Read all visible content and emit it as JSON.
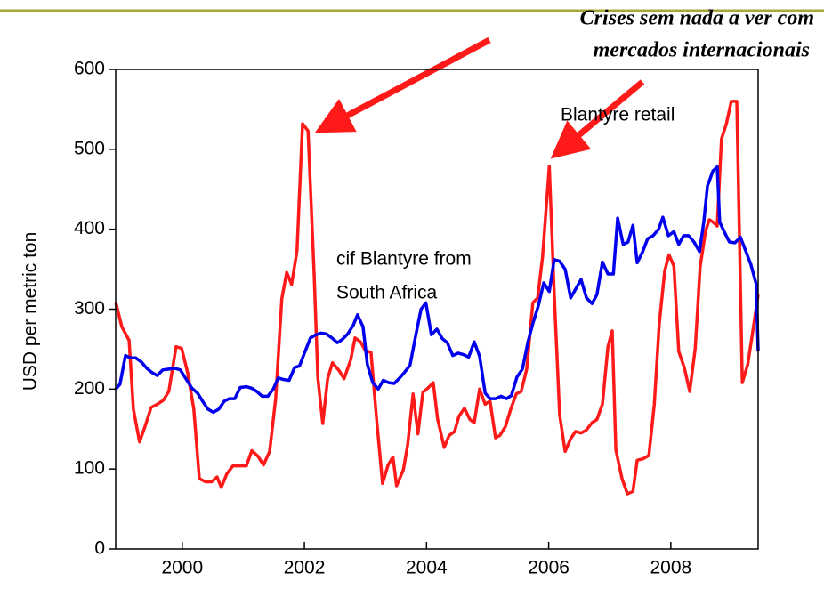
{
  "chart_data": {
    "type": "line",
    "y_label": "USD per metric ton",
    "annotation": [
      "Crises sem nada a ver com",
      "mercados internacionais"
    ],
    "ylim": [
      0,
      600
    ],
    "yticks": [
      0,
      100,
      200,
      300,
      400,
      500,
      600
    ],
    "xlim": [
      1998.91,
      2009.43
    ],
    "xticks": [
      2000,
      2002,
      2004,
      2006,
      2008
    ],
    "series": [
      {
        "name": [
          "Blantyre retail"
        ],
        "color": "#ff1a1a",
        "x": [
          1998.91,
          1999.01,
          1999.13,
          1999.2,
          1999.3,
          1999.39,
          1999.49,
          1999.59,
          1999.69,
          1999.78,
          1999.9,
          1999.99,
          2000.09,
          2000.19,
          2000.28,
          2000.38,
          2000.48,
          2000.57,
          2000.64,
          2000.73,
          2000.83,
          2000.95,
          2001.05,
          2001.14,
          2001.24,
          2001.33,
          2001.43,
          2001.53,
          2001.63,
          2001.71,
          2001.79,
          2001.88,
          2001.97,
          2002.06,
          2002.16,
          2002.22,
          2002.3,
          2002.38,
          2002.46,
          2002.57,
          2002.65,
          2002.76,
          2002.83,
          2002.92,
          2003.0,
          2003.09,
          2003.18,
          2003.28,
          2003.37,
          2003.45,
          2003.51,
          2003.62,
          2003.69,
          2003.78,
          2003.86,
          2003.94,
          2004.02,
          2004.11,
          2004.18,
          2004.29,
          2004.37,
          2004.46,
          2004.53,
          2004.62,
          2004.71,
          2004.78,
          2004.87,
          2004.96,
          2005.04,
          2005.13,
          2005.2,
          2005.29,
          2005.38,
          2005.47,
          2005.55,
          2005.64,
          2005.74,
          2005.82,
          2005.9,
          2006.01,
          2006.09,
          2006.18,
          2006.27,
          2006.36,
          2006.44,
          2006.53,
          2006.62,
          2006.71,
          2006.79,
          2006.88,
          2006.97,
          2007.04,
          2007.1,
          2007.2,
          2007.29,
          2007.38,
          2007.45,
          2007.55,
          2007.64,
          2007.73,
          2007.81,
          2007.9,
          2007.97,
          2008.05,
          2008.13,
          2008.22,
          2008.31,
          2008.4,
          2008.48,
          2008.57,
          2008.63,
          2008.69,
          2008.76,
          2008.83,
          2008.91,
          2008.99,
          2009.08,
          2009.17,
          2009.26,
          2009.34,
          2009.43
        ],
        "values": [
          309,
          278,
          261,
          175,
          134,
          153,
          177,
          181,
          186,
          197,
          253,
          251,
          220,
          175,
          88,
          84,
          84,
          90,
          77,
          94,
          104,
          104,
          104,
          123,
          116,
          105,
          122,
          188,
          313,
          346,
          331,
          373,
          532,
          523,
          342,
          214,
          157,
          213,
          233,
          223,
          213,
          237,
          264,
          259,
          248,
          246,
          164,
          82,
          105,
          115,
          79,
          99,
          130,
          194,
          144,
          196,
          201,
          208,
          163,
          127,
          142,
          147,
          166,
          176,
          162,
          158,
          200,
          181,
          185,
          139,
          142,
          153,
          175,
          194,
          197,
          225,
          308,
          314,
          365,
          479,
          320,
          168,
          122,
          138,
          147,
          145,
          149,
          158,
          162,
          181,
          253,
          273,
          124,
          88,
          69,
          72,
          111,
          113,
          117,
          181,
          281,
          348,
          368,
          354,
          247,
          227,
          197,
          251,
          353,
          398,
          412,
          409,
          404,
          513,
          532,
          560,
          560,
          208,
          231,
          271,
          318
        ]
      },
      {
        "name": [
          "cif Blantyre from",
          "South Africa"
        ],
        "color": "#0000ee",
        "x": [
          1998.91,
          1998.98,
          1999.07,
          1999.15,
          1999.24,
          1999.33,
          1999.42,
          1999.5,
          1999.59,
          1999.68,
          1999.78,
          1999.88,
          1999.97,
          2000.06,
          2000.16,
          2000.25,
          2000.34,
          2000.42,
          2000.51,
          2000.6,
          2000.69,
          2000.77,
          2000.86,
          2000.95,
          2001.05,
          2001.14,
          2001.22,
          2001.31,
          2001.4,
          2001.49,
          2001.57,
          2001.66,
          2001.75,
          2001.84,
          2001.92,
          2002.01,
          2002.1,
          2002.19,
          2002.27,
          2002.36,
          2002.45,
          2002.54,
          2002.62,
          2002.71,
          2002.8,
          2002.87,
          2002.96,
          2003.03,
          2003.12,
          2003.21,
          2003.29,
          2003.38,
          2003.47,
          2003.56,
          2003.64,
          2003.73,
          2003.82,
          2003.91,
          2003.99,
          2004.08,
          2004.17,
          2004.26,
          2004.34,
          2004.43,
          2004.52,
          2004.61,
          2004.69,
          2004.78,
          2004.87,
          2004.96,
          2005.04,
          2005.13,
          2005.22,
          2005.31,
          2005.39,
          2005.48,
          2005.57,
          2005.66,
          2005.74,
          2005.83,
          2005.92,
          2006.01,
          2006.09,
          2006.18,
          2006.27,
          2006.36,
          2006.44,
          2006.53,
          2006.62,
          2006.71,
          2006.79,
          2006.88,
          2006.97,
          2007.06,
          2007.13,
          2007.22,
          2007.3,
          2007.38,
          2007.45,
          2007.54,
          2007.62,
          2007.71,
          2007.8,
          2007.87,
          2007.96,
          2008.05,
          2008.13,
          2008.21,
          2008.29,
          2008.38,
          2008.47,
          2008.54,
          2008.6,
          2008.69,
          2008.76,
          2008.8,
          2008.88,
          2008.96,
          2009.05,
          2009.14,
          2009.23,
          2009.31,
          2009.4,
          2009.43
        ],
        "values": [
          200,
          206,
          242,
          239,
          239,
          234,
          226,
          221,
          217,
          224,
          225,
          226,
          224,
          213,
          201,
          195,
          184,
          175,
          171,
          175,
          185,
          188,
          188,
          202,
          203,
          201,
          197,
          191,
          191,
          200,
          214,
          212,
          211,
          227,
          229,
          247,
          264,
          268,
          270,
          269,
          264,
          258,
          262,
          269,
          280,
          293,
          278,
          231,
          208,
          200,
          211,
          208,
          207,
          214,
          221,
          230,
          266,
          300,
          308,
          268,
          275,
          263,
          258,
          242,
          245,
          243,
          240,
          259,
          241,
          195,
          188,
          188,
          191,
          188,
          192,
          215,
          225,
          259,
          282,
          304,
          333,
          322,
          362,
          360,
          350,
          314,
          325,
          337,
          314,
          307,
          318,
          359,
          344,
          344,
          414,
          381,
          384,
          405,
          358,
          372,
          388,
          392,
          400,
          415,
          392,
          397,
          381,
          392,
          392,
          384,
          372,
          409,
          454,
          473,
          478,
          409,
          396,
          384,
          383,
          390,
          372,
          356,
          331,
          247
        ]
      }
    ]
  }
}
